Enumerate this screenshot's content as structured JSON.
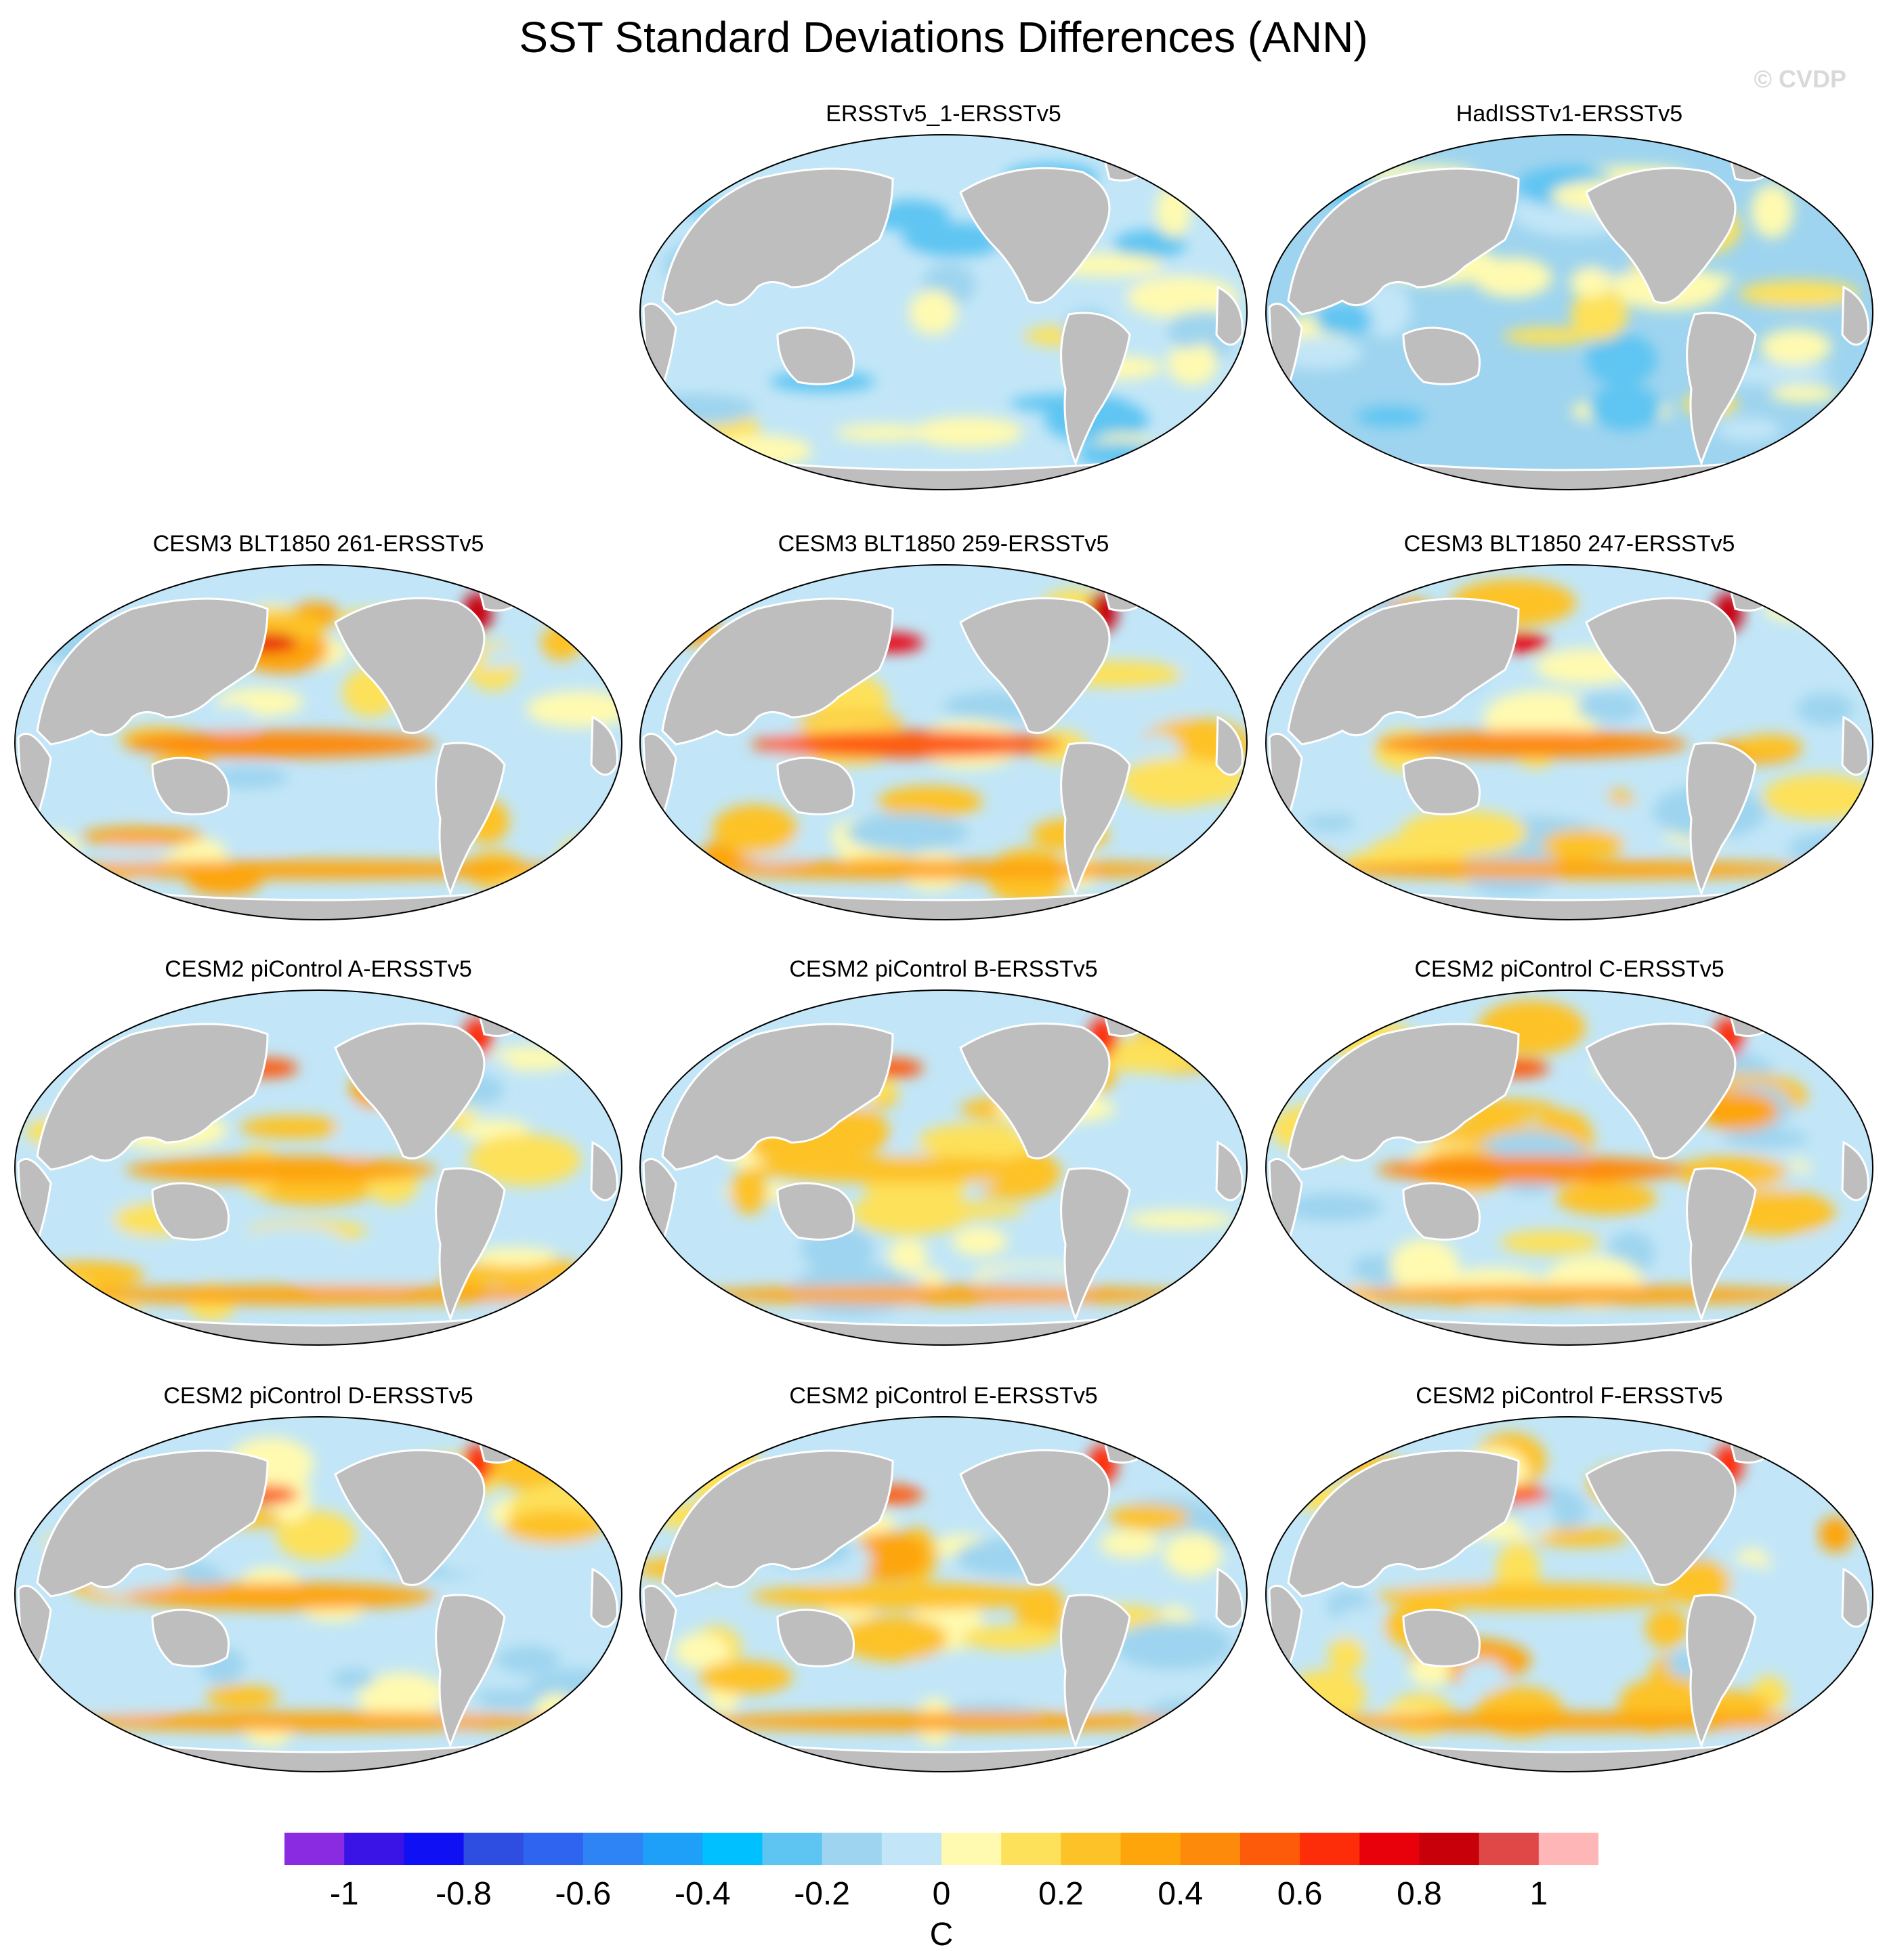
{
  "title": "SST Standard Deviations Differences (ANN)",
  "watermark": "© CVDP",
  "colors": {
    "land": "#bebebe",
    "coastline": "#ffffff",
    "background": "#ffffff"
  },
  "chart_data": {
    "type": "heatmap",
    "projection": "robinson-like global map, Pacific-centered",
    "variable": "SST standard deviation difference",
    "units": "C",
    "colorbar": {
      "label": "C",
      "tick_labels": [
        "-1",
        "-0.8",
        "-0.6",
        "-0.4",
        "-0.2",
        "0",
        "0.2",
        "0.4",
        "0.6",
        "0.8",
        "1"
      ],
      "tick_values": [
        -1,
        -0.8,
        -0.6,
        -0.4,
        -0.2,
        0,
        0.2,
        0.4,
        0.6,
        0.8,
        1
      ],
      "range": [
        -1.1,
        1.1
      ],
      "colors": [
        "#8a2be2",
        "#3a14e6",
        "#1010f5",
        "#2d4ee0",
        "#2f64f0",
        "#2e84f5",
        "#1ea0f8",
        "#00c0ff",
        "#5ec5f2",
        "#9ed4ef",
        "#c2e6f7",
        "#fffab0",
        "#fde15a",
        "#fdc228",
        "#fda50a",
        "#fd8a0a",
        "#fd5a0a",
        "#fd2d0a",
        "#e8000a",
        "#c8000a",
        "#e04848",
        "#ffb6b6"
      ]
    },
    "panels": [
      {
        "title": "ERSSTv5_1-ERSSTv5",
        "row": 0,
        "col": 1,
        "blobs": []
      },
      {
        "title": "HadISSTv1-ERSSTv5",
        "row": 0,
        "col": 2,
        "blobs": []
      },
      {
        "title": "CESM3 BLT1850 261-ERSSTv5",
        "row": 1,
        "col": 0,
        "blobs": []
      },
      {
        "title": "CESM3 BLT1850 259-ERSSTv5",
        "row": 1,
        "col": 1,
        "blobs": []
      },
      {
        "title": "CESM3 BLT1850 247-ERSSTv5",
        "row": 1,
        "col": 2,
        "blobs": []
      },
      {
        "title": "CESM2 piControl A-ERSSTv5",
        "row": 2,
        "col": 0,
        "blobs": []
      },
      {
        "title": "CESM2 piControl B-ERSSTv5",
        "row": 2,
        "col": 1,
        "blobs": []
      },
      {
        "title": "CESM2 piControl C-ERSSTv5",
        "row": 2,
        "col": 2,
        "blobs": []
      },
      {
        "title": "CESM2 piControl D-ERSSTv5",
        "row": 3,
        "col": 0,
        "blobs": []
      },
      {
        "title": "CESM2 piControl E-ERSSTv5",
        "row": 3,
        "col": 1,
        "blobs": []
      },
      {
        "title": "CESM2 piControl F-ERSSTv5",
        "row": 3,
        "col": 2,
        "blobs": []
      }
    ]
  }
}
